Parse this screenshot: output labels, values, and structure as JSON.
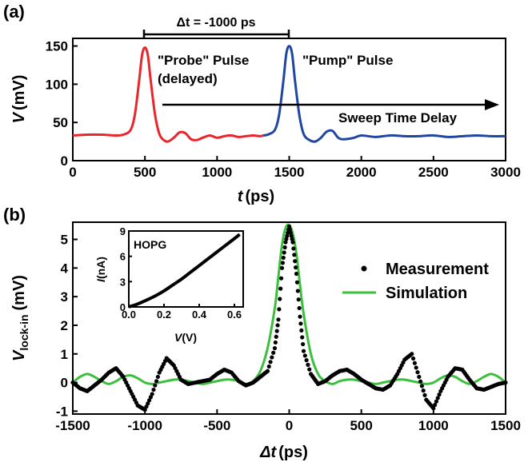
{
  "colors": {
    "probe": "#e8262b",
    "pump": "#1f46a0",
    "simulation": "#3cbf3c",
    "measurement": "#000000",
    "axes": "#000000"
  },
  "chart_data": [
    {
      "panel_label": "(a)",
      "type": "line",
      "xlabel_var": "t",
      "xlabel_unit": "(ps)",
      "ylabel_var": "V",
      "ylabel_unit": "(mV)",
      "xlim": [
        0,
        3000
      ],
      "ylim": [
        0,
        160
      ],
      "xticks": [
        "0",
        "500",
        "1000",
        "1500",
        "2000",
        "2500",
        "3000"
      ],
      "xtick_values": [
        0,
        500,
        1000,
        1500,
        2000,
        2500,
        3000
      ],
      "yticks": [
        "0",
        "50",
        "100",
        "150"
      ],
      "ytick_values": [
        0,
        50,
        100,
        150
      ],
      "annotations": {
        "delta_t": "Δt = -1000 ps",
        "probe_line1": "\"Probe\" Pulse",
        "probe_line2": "(delayed)",
        "pump": "\"Pump\" Pulse",
        "sweep": "Sweep Time Delay"
      },
      "series": [
        {
          "color": "#e8262b",
          "x": [
            0,
            100,
            200,
            300,
            350,
            400,
            430,
            460,
            480,
            500,
            520,
            540,
            570,
            600,
            630,
            660,
            700,
            740,
            780,
            820,
            860,
            900,
            950,
            1000,
            1050,
            1100,
            1150,
            1200,
            1250,
            1300,
            1320
          ],
          "y": [
            33,
            34,
            34,
            33,
            34,
            40,
            60,
            105,
            138,
            148,
            138,
            105,
            60,
            35,
            27,
            25,
            30,
            37,
            36,
            28,
            27,
            30,
            33,
            30,
            32,
            33,
            31,
            32,
            33,
            32,
            33
          ]
        },
        {
          "color": "#1f46a0",
          "x": [
            1320,
            1350,
            1400,
            1430,
            1460,
            1480,
            1500,
            1520,
            1540,
            1570,
            1600,
            1640,
            1680,
            1720,
            1760,
            1800,
            1840,
            1880,
            1950,
            2000,
            2100,
            2200,
            2300,
            2400,
            2500,
            2600,
            2700,
            2800,
            2900,
            3000
          ],
          "y": [
            33,
            34,
            40,
            60,
            105,
            140,
            150,
            140,
            105,
            60,
            35,
            27,
            25,
            30,
            38,
            39,
            30,
            28,
            30,
            33,
            31,
            33,
            32,
            32,
            33,
            31,
            32,
            33,
            32,
            32
          ]
        }
      ]
    },
    {
      "panel_label": "(b)",
      "type": "scatter+line",
      "xlabel_var": "Δt",
      "xlabel_unit": "(ps)",
      "ylabel_var": "V",
      "ylabel_sub": "lock-in",
      "ylabel_unit": "(mV)",
      "xlim": [
        -1500,
        1500
      ],
      "ylim": [
        -1.1,
        5.6
      ],
      "xticks": [
        "-1500",
        "-1000",
        "-500",
        "0",
        "500",
        "1000",
        "1500"
      ],
      "xtick_values": [
        -1500,
        -1000,
        -500,
        0,
        500,
        1000,
        1500
      ],
      "yticks": [
        "-1",
        "0",
        "1",
        "2",
        "3",
        "4",
        "5"
      ],
      "ytick_values": [
        -1,
        0,
        1,
        2,
        3,
        4,
        5
      ],
      "legend": {
        "placement": "right",
        "items": [
          "Measurement",
          "Simulation"
        ]
      },
      "measurement": {
        "x": [
          -1500,
          -1450,
          -1400,
          -1350,
          -1300,
          -1250,
          -1200,
          -1150,
          -1100,
          -1050,
          -1000,
          -950,
          -900,
          -850,
          -800,
          -750,
          -700,
          -650,
          -600,
          -550,
          -500,
          -450,
          -400,
          -350,
          -300,
          -250,
          -200,
          -150,
          -100,
          -75,
          -50,
          -25,
          0,
          25,
          50,
          75,
          100,
          150,
          200,
          250,
          300,
          350,
          400,
          450,
          500,
          550,
          600,
          650,
          700,
          750,
          800,
          850,
          900,
          950,
          1000,
          1050,
          1100,
          1150,
          1200,
          1250,
          1300,
          1350,
          1400,
          1450,
          1500
        ],
        "y": [
          0.0,
          -0.2,
          -0.3,
          -0.1,
          0.1,
          0.35,
          0.5,
          0.2,
          -0.3,
          -0.8,
          -0.95,
          -0.4,
          0.35,
          0.85,
          0.6,
          0.1,
          -0.05,
          0.0,
          0.05,
          0.1,
          0.3,
          0.45,
          0.35,
          0.05,
          -0.1,
          0.0,
          0.2,
          0.4,
          1.2,
          2.2,
          4.0,
          4.9,
          5.45,
          4.9,
          3.8,
          2.3,
          1.1,
          0.3,
          -0.05,
          0.05,
          0.25,
          0.4,
          0.45,
          0.3,
          0.1,
          -0.05,
          -0.2,
          -0.25,
          -0.1,
          0.3,
          0.8,
          1.0,
          0.2,
          -0.6,
          -0.9,
          -0.3,
          0.2,
          0.5,
          0.45,
          0.1,
          -0.2,
          -0.25,
          -0.15,
          -0.05,
          0.0
        ]
      },
      "simulation": {
        "x": [
          -1500,
          -1450,
          -1400,
          -1350,
          -1300,
          -1250,
          -1200,
          -1150,
          -1100,
          -1050,
          -1000,
          -950,
          -900,
          -850,
          -800,
          -750,
          -700,
          -650,
          -600,
          -550,
          -500,
          -450,
          -400,
          -350,
          -300,
          -250,
          -200,
          -150,
          -100,
          -75,
          -50,
          -25,
          0,
          25,
          50,
          75,
          100,
          150,
          200,
          250,
          300,
          350,
          400,
          450,
          500,
          550,
          600,
          650,
          700,
          750,
          800,
          850,
          900,
          950,
          1000,
          1050,
          1100,
          1150,
          1200,
          1250,
          1300,
          1350,
          1400,
          1450,
          1500
        ],
        "y": [
          0.0,
          0.2,
          0.3,
          0.2,
          0.05,
          -0.05,
          0.05,
          0.2,
          0.25,
          0.15,
          0.0,
          -0.05,
          0.0,
          0.05,
          0.1,
          0.1,
          0.05,
          0.0,
          -0.05,
          0.0,
          0.05,
          0.1,
          0.1,
          0.05,
          -0.05,
          0.05,
          0.4,
          1.2,
          2.6,
          3.7,
          4.8,
          5.4,
          5.5,
          5.2,
          4.5,
          3.4,
          2.4,
          1.0,
          0.3,
          0.05,
          -0.05,
          0.05,
          0.1,
          0.1,
          0.05,
          0.0,
          -0.05,
          0.0,
          0.05,
          0.1,
          0.1,
          0.05,
          0.0,
          -0.05,
          0.0,
          0.15,
          0.25,
          0.2,
          0.05,
          -0.05,
          0.05,
          0.2,
          0.3,
          0.2,
          0.0
        ]
      },
      "inset": {
        "label": "HOPG",
        "xlabel_var": "V",
        "xlabel_unit": "(V)",
        "ylabel_var": "I",
        "ylabel_unit": "(nA)",
        "xlim": [
          0,
          0.65
        ],
        "ylim": [
          0,
          9
        ],
        "xticks": [
          "0.0",
          "0.2",
          "0.4",
          "0.6"
        ],
        "xtick_values": [
          0,
          0.2,
          0.4,
          0.6
        ],
        "yticks": [
          "0",
          "3",
          "6",
          "9"
        ],
        "ytick_values": [
          0,
          3,
          6,
          9
        ],
        "x": [
          0,
          0.05,
          0.1,
          0.15,
          0.2,
          0.25,
          0.3,
          0.35,
          0.4,
          0.45,
          0.5,
          0.55,
          0.6,
          0.63
        ],
        "y": [
          0,
          0.35,
          0.8,
          1.3,
          1.9,
          2.6,
          3.3,
          4.1,
          4.9,
          5.7,
          6.5,
          7.3,
          8.1,
          8.6
        ]
      }
    }
  ]
}
